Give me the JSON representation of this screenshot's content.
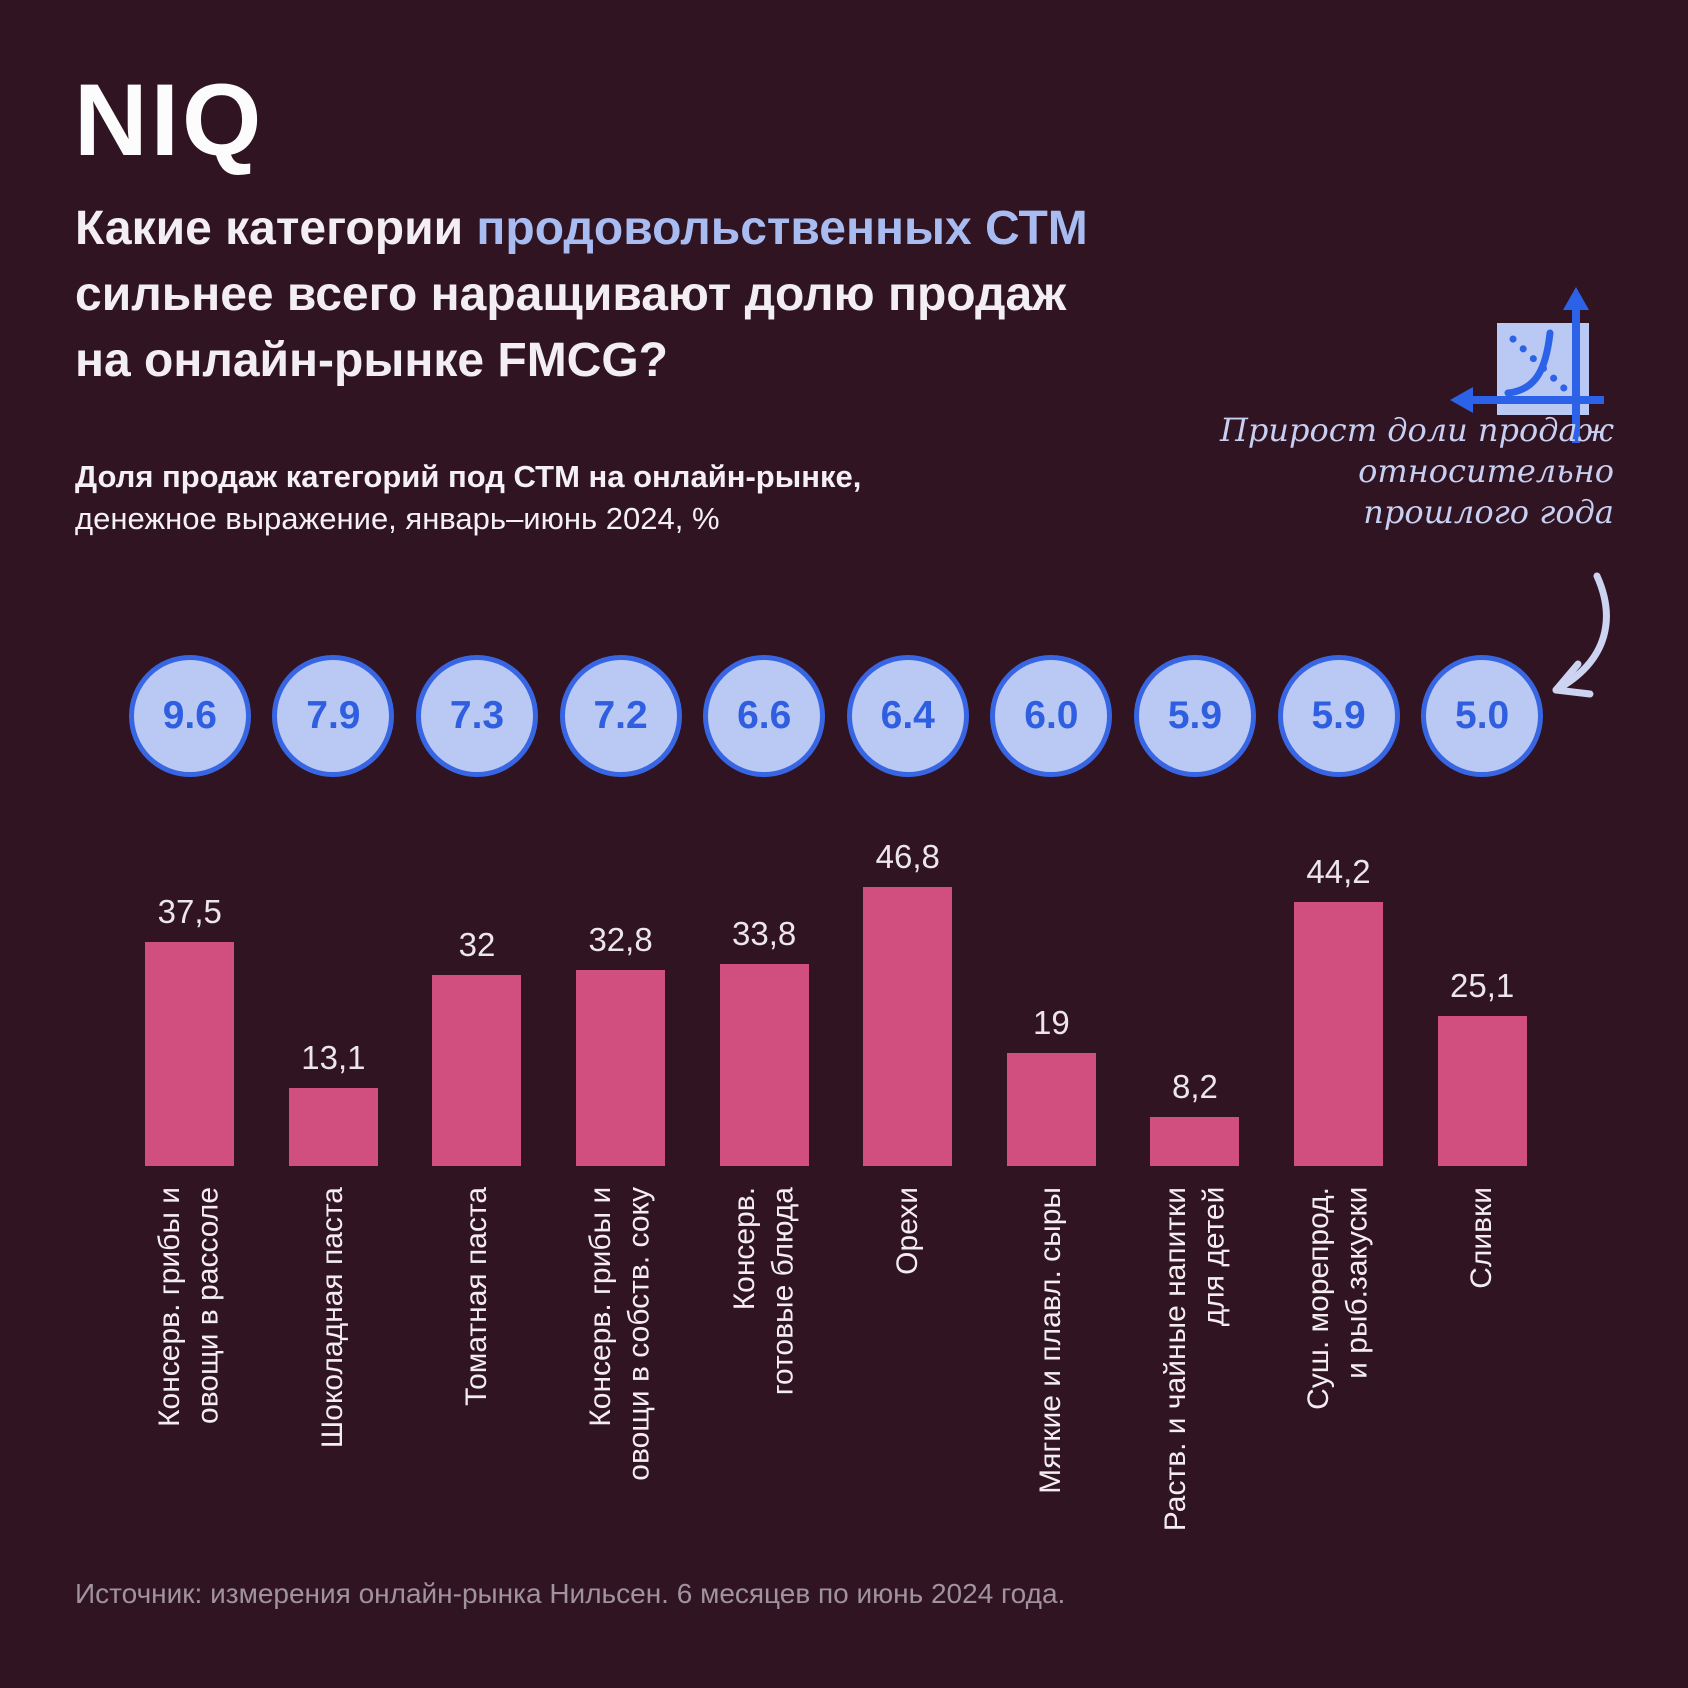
{
  "brand": {
    "logo_text": "NIQ"
  },
  "title": {
    "line1_pre": "Какие категории ",
    "line1_highlight": "продовольственных СТМ",
    "line2": "сильнее всего наращивают долю продаж",
    "line3": "на онлайн-рынке FMCG?",
    "highlight_color": "#a8bcf2"
  },
  "subtitle": {
    "line1_bold": "Доля продаж категорий под СТМ на онлайн-рынке,",
    "line2": "денежное выражение, январь–июнь 2024, %"
  },
  "annotation": {
    "icon": "growth-chart-icon",
    "line1": "Прирост доли продаж",
    "line2": "относительно",
    "line3": "прошлого года"
  },
  "source": "Источник: измерения онлайн-рынка Нильсен. 6 месяцев по июнь 2024 года.",
  "colors": {
    "background": "#301422",
    "bar": "#d04f7e",
    "circle_fill": "#b9c9f4",
    "circle_border": "#3866e3",
    "circle_text": "#2f5fe0",
    "title_highlight": "#a8bcf2",
    "annotation_text": "#c7cff3",
    "arrow": "#ccd4f2",
    "icon_line": "#2b62e8",
    "source_text": "#a0939e"
  },
  "chart_data": {
    "type": "bar",
    "title": "Доля продаж категорий под СТМ на онлайн-рынке, денежное выражение, январь–июнь 2024, %",
    "categories": [
      "Консерв. грибы и овощи в рассоле",
      "Шоколадная паста",
      "Томатная паста",
      "Консерв. грибы и овощи в собств. соку",
      "Консерв. готовые блюда",
      "Орехи",
      "Мягкие и плавл. сыры",
      "Раств. и чайные напитки для детей",
      "Суш. морепрод. и рыб.закуски",
      "Сливки"
    ],
    "category_lines": [
      [
        "Консерв. грибы и",
        "овощи в рассоле"
      ],
      [
        "Шоколадная паста"
      ],
      [
        "Томатная паста"
      ],
      [
        "Консерв. грибы и",
        "овощи в собств. соку"
      ],
      [
        "Консерв.",
        "готовые блюда"
      ],
      [
        "Орехи"
      ],
      [
        "Мягкие и плавл. сыры"
      ],
      [
        "Раств. и чайные напитки",
        "для детей"
      ],
      [
        "Суш. морепрод.",
        "и рыб.закуски"
      ],
      [
        "Сливки"
      ]
    ],
    "series": [
      {
        "name": "Доля продаж категорий под СТМ на онлайн-рынке, %",
        "values": [
          37.5,
          13.1,
          32,
          32.8,
          33.8,
          46.8,
          19,
          8.2,
          44.2,
          25.1
        ],
        "labels": [
          "37,5",
          "13,1",
          "32",
          "32,8",
          "33,8",
          "46,8",
          "19",
          "8,2",
          "44,2",
          "25,1"
        ]
      },
      {
        "name": "Прирост доли продаж относительно прошлого года",
        "values": [
          9.6,
          7.9,
          7.3,
          7.2,
          6.6,
          6.4,
          6.0,
          5.9,
          5.9,
          5.0
        ],
        "labels": [
          "9.6",
          "7.9",
          "7.3",
          "7.2",
          "6.6",
          "6.4",
          "6.0",
          "5.9",
          "5.9",
          "5.0"
        ]
      }
    ],
    "ylim": [
      0,
      50
    ],
    "grid": false,
    "legend_position": "none",
    "xlabel": "",
    "ylabel": ""
  }
}
